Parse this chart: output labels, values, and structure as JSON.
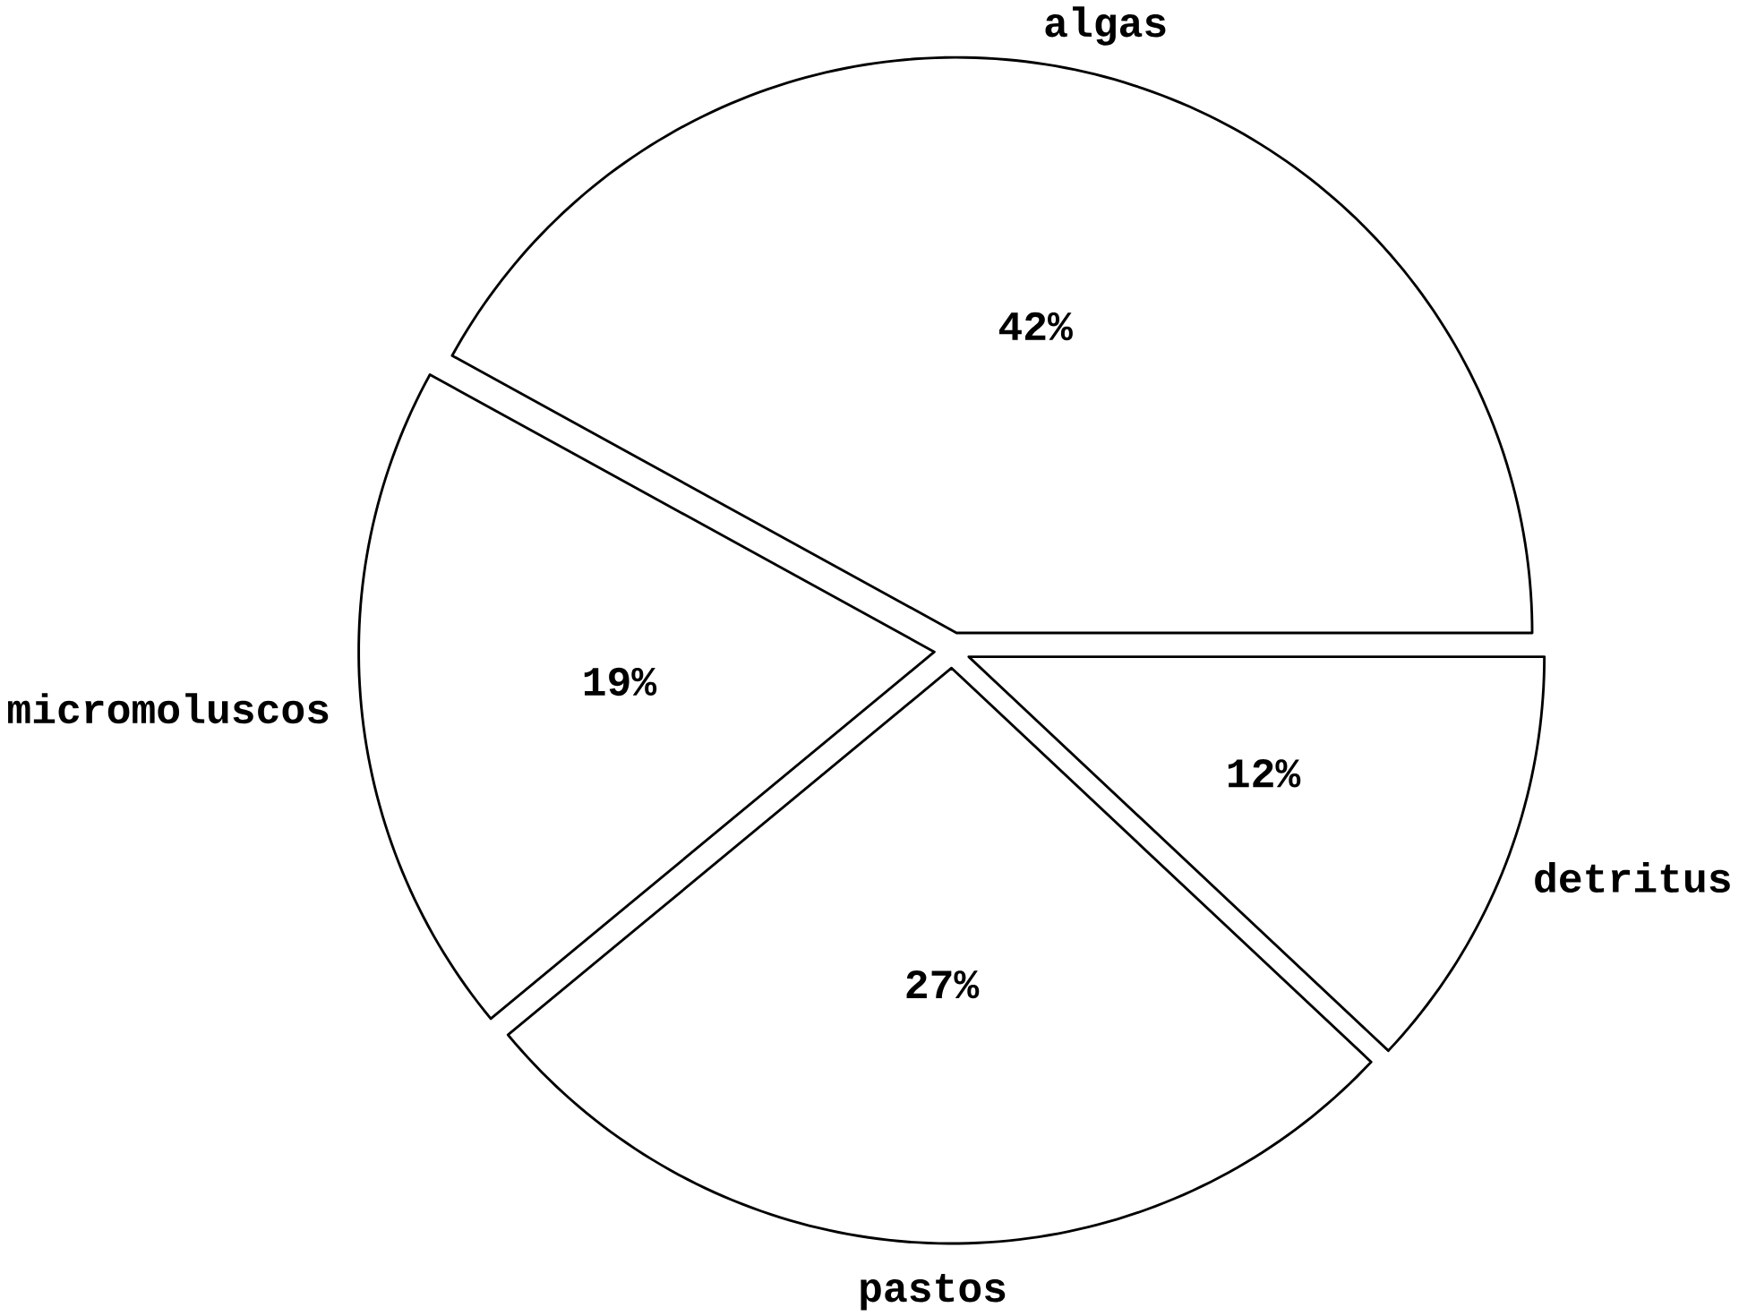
{
  "chart_data": {
    "type": "pie",
    "categories": [
      "algas",
      "micromoluscos",
      "pastos",
      "detritus"
    ],
    "values": [
      42,
      19,
      27,
      12
    ],
    "value_labels": [
      "42%",
      "19%",
      "27%",
      "12%"
    ],
    "colors": [
      "#ffffff",
      "#ffffff",
      "#ffffff",
      "#ffffff"
    ]
  }
}
